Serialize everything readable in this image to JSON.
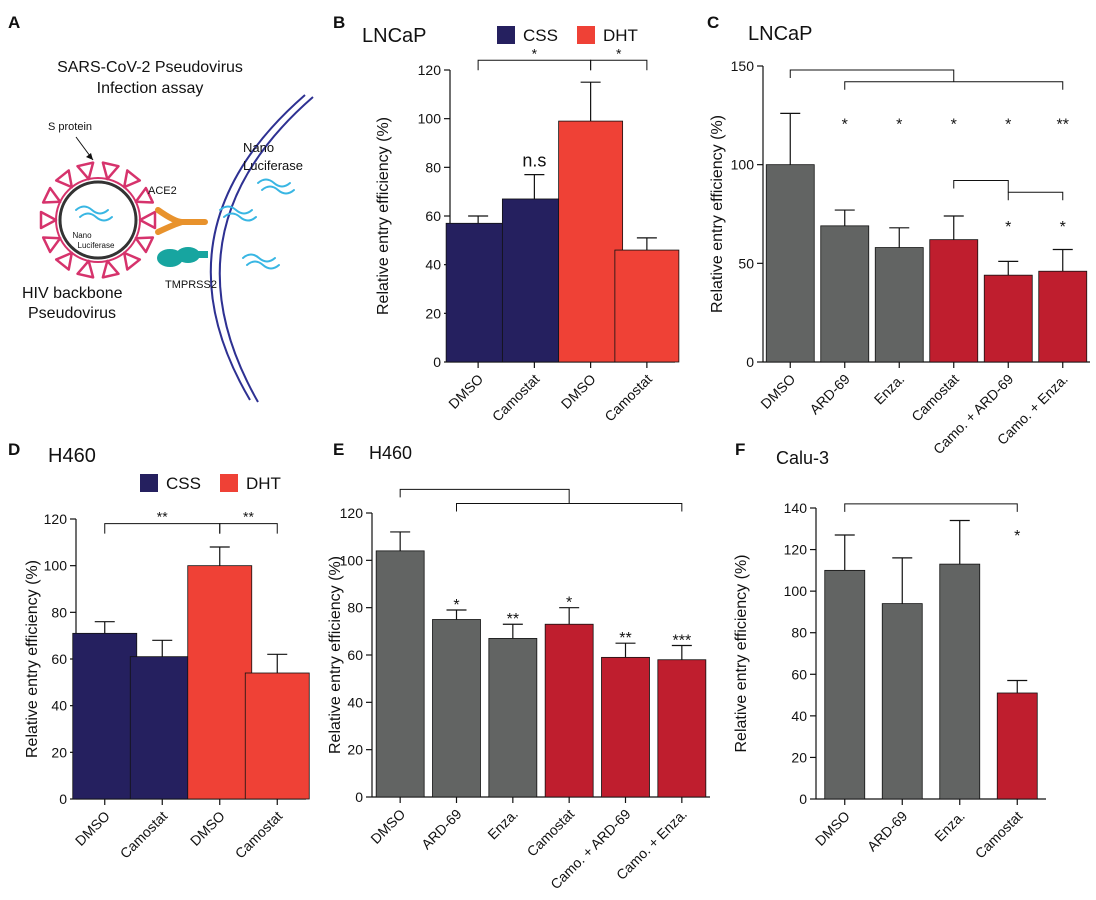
{
  "colors": {
    "navy": "#25205f",
    "orange_red": "#ef4136",
    "gray": "#626463",
    "crimson": "#bf1e2e",
    "virus": "#d6336c",
    "cyan": "#38b6e3",
    "membrane": "#2e3192",
    "ace2": "#e8922c",
    "tmprss2": "#17a5a0"
  },
  "panel_a": {
    "letter": "A",
    "title_line1": "SARS-CoV-2 Pseudovirus",
    "title_line2": "Infection assay",
    "s_protein_label": "S protein",
    "ace2_label": "ACE2",
    "tmprss2_label": "TMPRSS2",
    "nano_luc_line1": "Nano",
    "nano_luc_line2": "Luciferase",
    "inner_nano_line1": "Nano",
    "inner_nano_line2": "Luciferase",
    "hiv_line1": "HIV backbone",
    "hiv_line2": "Pseudovirus",
    "icons": [
      "virus-particle-icon",
      "ace2-receptor-icon",
      "tmprss2-protease-icon",
      "cell-membrane-icon",
      "luciferase-rna-icon"
    ]
  },
  "chart_data": [
    {
      "id": "B",
      "letter": "B",
      "type": "bar",
      "title": "LNCaP",
      "categories": [
        "DMSO",
        "Camostat",
        "DMSO",
        "Camostat"
      ],
      "values": [
        57,
        67,
        99,
        46
      ],
      "errors": [
        3,
        10,
        16,
        5
      ],
      "bar_colors": [
        "navy",
        "navy",
        "orange_red",
        "orange_red"
      ],
      "ylabel": "Relative entry efficiency (%)",
      "ylim": [
        0,
        120
      ],
      "yticks": [
        0,
        20,
        40,
        60,
        80,
        100,
        120
      ],
      "legend": [
        {
          "name": "CSS",
          "color": "navy"
        },
        {
          "name": "DHT",
          "color": "orange_red"
        }
      ],
      "bar_labels": [
        {
          "index": 1,
          "text": "n.s"
        }
      ],
      "brackets": [
        {
          "from": 0,
          "to": 2,
          "y": 124,
          "label": "*"
        },
        {
          "from": 2,
          "to": 3,
          "y": 124,
          "label": "*"
        }
      ]
    },
    {
      "id": "C",
      "letter": "C",
      "type": "bar",
      "title": "LNCaP",
      "categories": [
        "DMSO",
        "ARD-69",
        "Enza.",
        "Camostat",
        "Camo. + ARD-69",
        "Camo. + Enza."
      ],
      "values": [
        100,
        69,
        58,
        62,
        44,
        46
      ],
      "errors": [
        26,
        8,
        10,
        12,
        7,
        11
      ],
      "bar_colors": [
        "gray",
        "gray",
        "gray",
        "crimson",
        "crimson",
        "crimson"
      ],
      "ylabel": "Relative entry efficiency (%)",
      "ylim": [
        0,
        150
      ],
      "yticks": [
        0,
        50,
        100,
        150
      ],
      "bar_labels": [
        {
          "index": 1,
          "text": "*",
          "y": 122
        },
        {
          "index": 2,
          "text": "*",
          "y": 122
        },
        {
          "index": 3,
          "text": "*",
          "y": 122
        },
        {
          "index": 4,
          "text": "*",
          "y": 122
        },
        {
          "index": 5,
          "text": "**",
          "y": 122
        },
        {
          "index": 4,
          "text": "*",
          "y": 70
        },
        {
          "index": 5,
          "text": "*",
          "y": 70
        }
      ],
      "brackets": [
        {
          "type": "group",
          "root": 0,
          "to": 5,
          "y": 148,
          "y2": 142,
          "join": 3
        },
        {
          "type": "group",
          "root": 3,
          "to": 5,
          "y": 92,
          "y2": 86,
          "join": 4
        }
      ]
    },
    {
      "id": "D",
      "letter": "D",
      "type": "bar",
      "title": "H460",
      "categories": [
        "DMSO",
        "Camostat",
        "DMSO",
        "Camostat"
      ],
      "values": [
        71,
        61,
        100,
        54
      ],
      "errors": [
        5,
        7,
        8,
        8
      ],
      "bar_colors": [
        "navy",
        "navy",
        "orange_red",
        "orange_red"
      ],
      "ylabel": "Relative entry efficiency (%)",
      "ylim": [
        0,
        120
      ],
      "yticks": [
        0,
        20,
        40,
        60,
        80,
        100,
        120
      ],
      "legend": [
        {
          "name": "CSS",
          "color": "navy"
        },
        {
          "name": "DHT",
          "color": "orange_red"
        }
      ],
      "brackets": [
        {
          "from": 0,
          "to": 2,
          "y": 118,
          "label": "**"
        },
        {
          "from": 2,
          "to": 3,
          "y": 118,
          "label": "**"
        }
      ]
    },
    {
      "id": "E",
      "letter": "E",
      "type": "bar",
      "title": "H460",
      "categories": [
        "DMSO",
        "ARD-69",
        "Enza.",
        "Camostat",
        "Camo. + ARD-69",
        "Camo. + Enza."
      ],
      "values": [
        104,
        75,
        67,
        73,
        59,
        58
      ],
      "errors": [
        8,
        4,
        6,
        7,
        6,
        6
      ],
      "bar_colors": [
        "gray",
        "gray",
        "gray",
        "crimson",
        "crimson",
        "crimson"
      ],
      "ylabel": "Relative entry efficiency (%)",
      "ylim": [
        0,
        120
      ],
      "yticks": [
        0,
        20,
        40,
        60,
        80,
        100,
        120
      ],
      "bar_labels": [
        {
          "index": 1,
          "text": "*"
        },
        {
          "index": 2,
          "text": "**"
        },
        {
          "index": 3,
          "text": "*"
        },
        {
          "index": 4,
          "text": "**"
        },
        {
          "index": 5,
          "text": "***"
        }
      ],
      "brackets": [
        {
          "type": "group",
          "root": 0,
          "to": 5,
          "y": 130,
          "y2": 124,
          "join": 3
        }
      ]
    },
    {
      "id": "F",
      "letter": "F",
      "type": "bar",
      "title": "Calu-3",
      "categories": [
        "DMSO",
        "ARD-69",
        "Enza.",
        "Camostat"
      ],
      "values": [
        110,
        94,
        113,
        51
      ],
      "errors": [
        17,
        22,
        21,
        6
      ],
      "bar_colors": [
        "gray",
        "gray",
        "gray",
        "crimson"
      ],
      "ylabel": "Relative entry efficiency (%)",
      "ylim": [
        0,
        140
      ],
      "yticks": [
        0,
        20,
        40,
        60,
        80,
        100,
        120,
        140
      ],
      "bar_labels": [
        {
          "index": 3,
          "text": "*",
          "y": 128
        }
      ],
      "brackets": [
        {
          "type": "simple",
          "from": 0,
          "to": 3,
          "y": 142
        }
      ]
    }
  ]
}
